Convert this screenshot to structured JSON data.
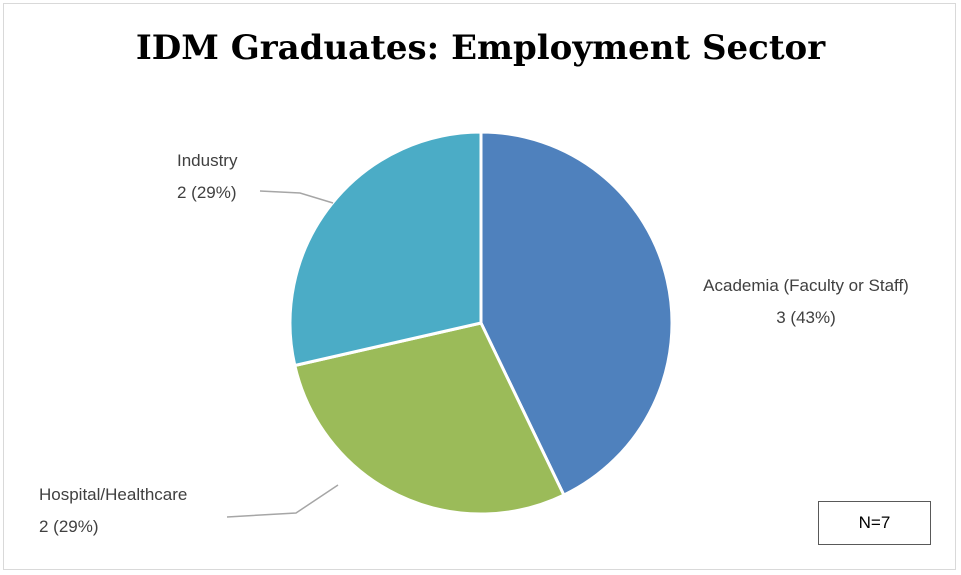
{
  "chart_data": {
    "type": "pie",
    "title": "IDM Graduates: Employment Sector",
    "slices": [
      {
        "label": "Academia (Faculty or Staff)",
        "value": 3,
        "percent_label": "3 (43%)",
        "color": "#4f81bd"
      },
      {
        "label": "Hospital/Healthcare",
        "value": 2,
        "percent_label": "2 (29%)",
        "color": "#9bbb59"
      },
      {
        "label": "Industry",
        "value": 2,
        "percent_label": "2 (29%)",
        "color": "#4bacc6"
      }
    ],
    "annotation": "N=7",
    "legend": "none"
  }
}
